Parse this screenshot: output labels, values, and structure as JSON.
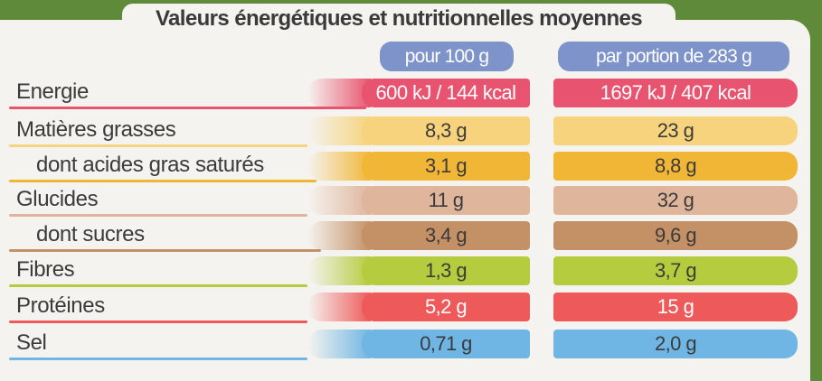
{
  "title": "Valeurs énergétiques et nutritionnelles moyennes",
  "columns": [
    "pour 100 g",
    "par portion de 283 g"
  ],
  "rows": [
    {
      "label": "Energie",
      "per100": "600 kJ / 144 kcal",
      "portion": "1697 kJ / 407 kcal",
      "color": "#e8546f",
      "text": "#ffffff"
    },
    {
      "label": "Matières grasses",
      "per100": "8,3 g",
      "portion": "23 g",
      "color": "#f6d37c",
      "text": "#3b3b3b"
    },
    {
      "label": "dont acides gras saturés",
      "per100": "3,1 g",
      "portion": "8,8 g",
      "color": "#f2b636",
      "text": "#3b3b3b",
      "indent": true
    },
    {
      "label": "Glucides",
      "per100": "11 g",
      "portion": "32 g",
      "color": "#dfb59c",
      "text": "#3b3b3b"
    },
    {
      "label": "dont sucres",
      "per100": "3,4 g",
      "portion": "9,6 g",
      "color": "#c49066",
      "text": "#3b3b3b",
      "indent": true
    },
    {
      "label": "Fibres",
      "per100": "1,3 g",
      "portion": "3,7 g",
      "color": "#b6cc3f",
      "text": "#3b3b3b"
    },
    {
      "label": "Protéines",
      "per100": "5,2 g",
      "portion": "15 g",
      "color": "#ee5a5a",
      "text": "#ffffff"
    },
    {
      "label": "Sel",
      "per100": "0,71 g",
      "portion": "2,0 g",
      "color": "#6fb6e4",
      "text": "#3b3b3b"
    }
  ]
}
